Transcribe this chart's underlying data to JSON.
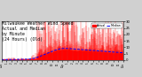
{
  "title_line1": "Milwaukee Weather Wind Speed",
  "title_line2": "Actual and Median",
  "title_line3": "by Minute",
  "title_line4": "(24 Hours) (Old)",
  "title_fontsize": 3.5,
  "background_color": "#d0d0d0",
  "plot_bg_color": "#ffffff",
  "actual_color": "#ff0000",
  "median_color": "#0000ff",
  "legend_actual": "Actual",
  "legend_median": "Median",
  "ylim": [
    0,
    30
  ],
  "xlim": [
    0,
    1440
  ],
  "n_points": 1440,
  "seed": 42,
  "yticks": [
    0,
    5,
    10,
    15,
    20,
    25,
    30
  ],
  "ytick_labels": [
    "0",
    "5",
    "10",
    "15",
    "20",
    "25",
    "30"
  ]
}
